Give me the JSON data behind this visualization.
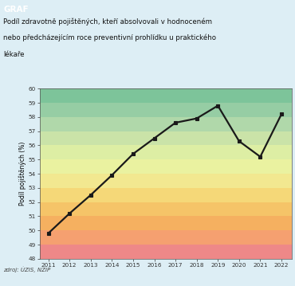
{
  "years": [
    2011,
    2012,
    2013,
    2014,
    2015,
    2016,
    2017,
    2018,
    2019,
    2020,
    2021,
    2022
  ],
  "values": [
    49.8,
    51.2,
    52.5,
    53.9,
    55.4,
    56.5,
    57.6,
    57.9,
    58.8,
    56.3,
    55.2,
    58.2
  ],
  "ylim": [
    48,
    60
  ],
  "yticks": [
    48,
    49,
    50,
    51,
    52,
    53,
    54,
    55,
    56,
    57,
    58,
    59,
    60
  ],
  "ylabel": "Podíl pojištěných (%)",
  "header_color": "#009aaa",
  "header_text": "GRAF",
  "header_text_color": "#ffffff",
  "title_line1": "Podíl zdravotně pojištěných, kteří absolvovali v hodnoceném",
  "title_line2": "nebo předcházejícím roce preventivní prohlídku u praktického",
  "title_line3": "lékaře",
  "source_text": "zdroj: ÚZIS, NZIP",
  "bg_color": "#ddeef5",
  "bands": [
    {
      "ymin": 59,
      "ymax": 60,
      "color": "#7dc49a"
    },
    {
      "ymin": 58,
      "ymax": 59,
      "color": "#96cda4"
    },
    {
      "ymin": 57,
      "ymax": 58,
      "color": "#b0d8aa"
    },
    {
      "ymin": 56,
      "ymax": 57,
      "color": "#cae3a8"
    },
    {
      "ymin": 55,
      "ymax": 56,
      "color": "#ddeea4"
    },
    {
      "ymin": 54,
      "ymax": 55,
      "color": "#eaf2a0"
    },
    {
      "ymin": 53,
      "ymax": 54,
      "color": "#f2e890"
    },
    {
      "ymin": 52,
      "ymax": 53,
      "color": "#f5d878"
    },
    {
      "ymin": 51,
      "ymax": 52,
      "color": "#f5c468"
    },
    {
      "ymin": 50,
      "ymax": 51,
      "color": "#f5b060"
    },
    {
      "ymin": 49,
      "ymax": 50,
      "color": "#f5a070"
    },
    {
      "ymin": 48,
      "ymax": 49,
      "color": "#ee8888"
    }
  ],
  "line_color": "#1a1a1a",
  "marker_color": "#1a1a1a",
  "marker_style": "s",
  "marker_size": 3.5,
  "line_width": 1.6
}
